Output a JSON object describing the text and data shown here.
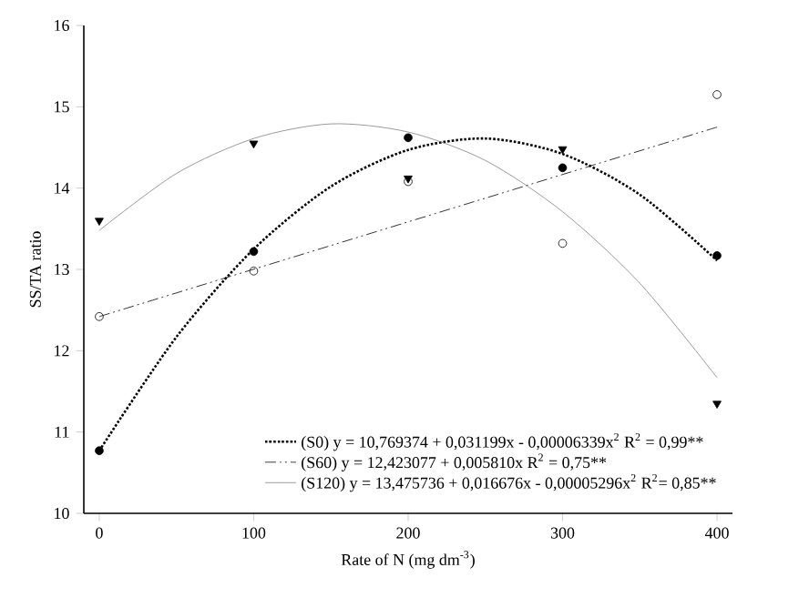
{
  "chart_data": {
    "type": "scatter",
    "xlabel": "Rate of N (mg dm$^{-3}$)",
    "ylabel": "SS/TA ratio",
    "xlim": [
      -10,
      410
    ],
    "ylim": [
      10,
      16
    ],
    "xticks": [
      0,
      100,
      200,
      300,
      400
    ],
    "yticks": [
      10,
      11,
      12,
      13,
      14,
      15,
      16
    ],
    "grid": false,
    "legend": "bottom right",
    "series": [
      {
        "marker": "circle",
        "color": "#000000",
        "x": [
          0,
          100,
          200,
          300,
          400
        ],
        "values": [
          10.77,
          13.22,
          14.62,
          14.25,
          13.17
        ]
      },
      {
        "marker": "circle-open",
        "color": "#000000",
        "x": [
          0,
          100,
          200,
          300,
          400
        ],
        "values": [
          12.42,
          12.98,
          14.08,
          13.32,
          15.15
        ]
      },
      {
        "marker": "triangle",
        "color": "#000000",
        "x": [
          0,
          100,
          200,
          300,
          400
        ],
        "values": [
          13.6,
          14.55,
          14.12,
          14.48,
          11.35
        ]
      },
      {
        "type": "line",
        "name": "(S0) y = 10,769374 + 0,031199x - 0,00006339x$^{2}$ R$^{2}$ = 0,99**",
        "line_style": "dotted",
        "color": "#000000",
        "x": [
          0,
          50,
          100,
          150,
          200,
          250,
          300,
          350,
          400
        ],
        "values": [
          10.77,
          12.17,
          13.25,
          14.02,
          14.47,
          14.61,
          14.42,
          13.92,
          13.11
        ]
      },
      {
        "type": "line",
        "name": "(S60) y = 12,423077 + 0,005810x R$^{2}$ = 0,75**",
        "line_style": "dashdotdotted",
        "color": "#000000",
        "x": [
          0,
          400
        ],
        "values": [
          12.42,
          14.75
        ]
      },
      {
        "type": "line",
        "name": "(S120) y = 13,475736 + 0,016676x - 0,00005296x$^{2}$ R$^{2}$= 0,85**",
        "line_style": "solid",
        "color": "#808080",
        "x": [
          0,
          50,
          100,
          150,
          200,
          250,
          300,
          350,
          400
        ],
        "values": [
          13.48,
          14.18,
          14.61,
          14.79,
          14.69,
          14.34,
          13.71,
          12.83,
          11.67
        ]
      }
    ]
  }
}
